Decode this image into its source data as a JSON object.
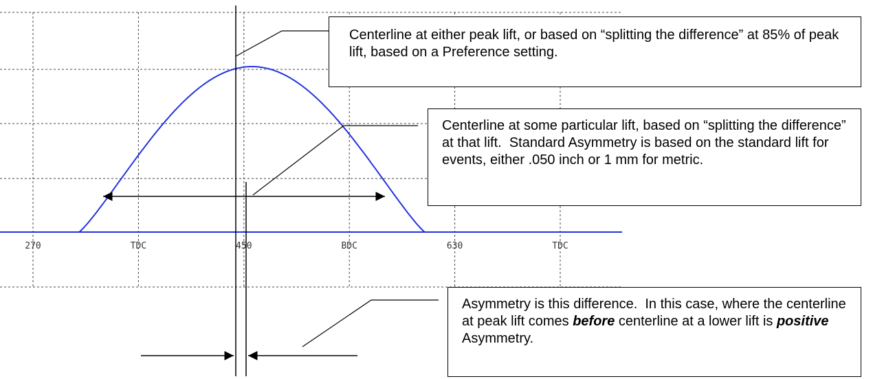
{
  "axis_labels": [
    "270",
    "TDC",
    "450",
    "BDC",
    "630",
    "TDC"
  ],
  "callouts": [
    {
      "text": "Centerline at either peak lift, or based on “splitting the difference” at 85% of peak lift, based on a Preference setting."
    },
    {
      "text": "Centerline at some particular lift, based on “splitting the difference” at that lift.  Standard Asymmetry is based on the standard lift for events, either .050 inch or 1 mm for metric."
    },
    {
      "segments": [
        "Asymmetry is this difference.  In this case, where the centerline at peak lift comes ",
        "before",
        " centerline at a lower lift is ",
        "positive",
        " Asymmetry."
      ]
    }
  ]
}
